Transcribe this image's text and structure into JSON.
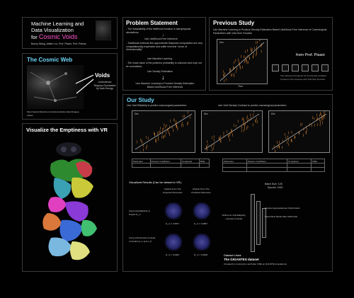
{
  "colors": {
    "accent_cyan": "#55ccee",
    "accent_magenta": "#ff55cc",
    "background": "#000000"
  },
  "title": {
    "line1": "Machine Learning and",
    "line2": "Data Visualization",
    "for": "for",
    "highlight": "Cosmic Voids",
    "authors": "Bonny Wang, Alister Liu, Prof. Pisani, Prof. Reena"
  },
  "cosmic_web": {
    "heading": "The Cosmic Web",
    "voids_label": "Voids",
    "voids_desc": "Underdense Regions Dominated by Dark Energy",
    "caption": "https://www.britannica.com/science/dark-matter/images-videos"
  },
  "vr": {
    "heading": "Visualize the Emptiness with VR"
  },
  "problem": {
    "heading": "Problem Statement",
    "p1": "- The intractability of the likelihood function in astrophysical simulations.",
    "use1": "Use Likelihood-Free Inference",
    "p2": "- Traditional methods like approximate Bayesian computation are very computationally expensive and suffer from the \"curse of dimensionality\"",
    "use2": "Use Machine Learning",
    "p3": "- The exact value of the posterior probability is unknown and may not be normalized.",
    "use3": "Use Density Estimation",
    "conclusion": "Use Machine Learning to Produce Density Estimation Based Likelihood-Free Inference"
  },
  "previous": {
    "heading": "Previous Study",
    "desc": "Use Machine Learning to Produce Density Estimation Based Likelihood-Free Inference of Cosmological Parameters with Void Size Function",
    "credit": "from Prof. Pisani",
    "plot_label": "Ωm",
    "xlabel": "True",
    "ylabel": "Inference",
    "inference_text": "The Inference Produced for the Density of Matter Content in the Universe with Void Size Function."
  },
  "our_study": {
    "heading": "Our Study",
    "ellipticity_text": "Use Void Ellipticity to predict cosmological parameters:",
    "contrast_text": "Use Void Density Contrast to predict cosmological parameters:",
    "plot_label": "Ωm",
    "xlabel": "True",
    "ylabel": "Inference",
    "table_headers": [
      "Parameter",
      "Pearson Coefficient",
      "R-squared",
      "MSE"
    ],
    "visualized_title": "Visualized Results (Can be viewed in VR):",
    "col_trained": "Models From The Expected Parameter",
    "col_predicted": "Models From The Predicted Parameter",
    "row1_label": "Using Void Ellipticity to Predict Ω_m",
    "row2_label": "Using Void Density Contrast to Predict Ω_m and σ_8",
    "r1a": "Ω_m = 0.2871",
    "r1b": "Ω_m = 0.2897",
    "r2a": "Ω_m = 0.2904",
    "r2b": "Ω_m = 0.2909",
    "batch": "Batch Size: 128",
    "epochs": "Epochs: 1000",
    "bins": "10 Bins for Void Ellipticity + Density Contrast",
    "optuna": "Optuna Hyperparameter Optimization",
    "best_model": "Select Best Model After 1000 trials",
    "dataset_label": "Dataset Used:",
    "dataset_name": "The GIGANTES dataset",
    "dataset_desc": "(Created by running the void finder VIDE on QUIJOTE simulations)"
  }
}
